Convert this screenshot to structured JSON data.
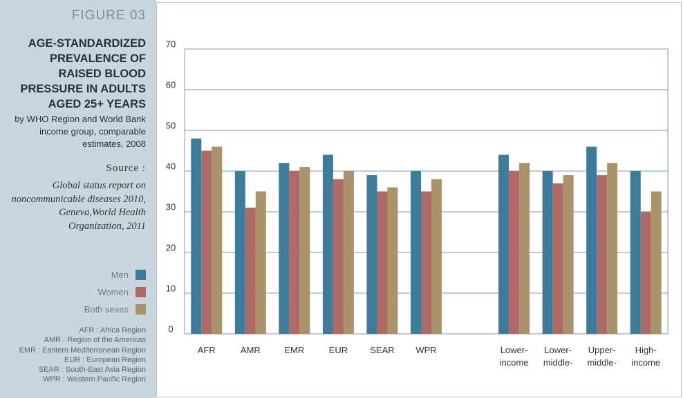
{
  "chart_data": {
    "type": "bar",
    "figure_label": "FIGURE 03",
    "title": "AGE-STANDARDIZED PREVALENCE OF RAISED BLOOD PRESSURE IN ADULTS AGED 25+ YEARS",
    "subtitle": "by WHO Region and World Bank income group, comparable estimates, 2008",
    "source_label": "Source :",
    "source": "Global status report on noncommunicable diseases 2010, Geneva,World Health Organization, 2011",
    "notes": [
      "AFR : Africa Region",
      "AMR : Region of the Americas",
      "EMR : Eastern Mediterranean Region",
      "EUR : European Region",
      "SEAR : South-East Asia Region",
      "WPR : Western Pacific Region"
    ],
    "categories": [
      "AFR",
      "AMR",
      "EMR",
      "EUR",
      "SEAR",
      "WPR",
      null,
      "Lower-income",
      "Lower-middle-",
      "Upper-middle-",
      "High-income"
    ],
    "series": [
      {
        "name": "Men",
        "color": "#3e7a9a",
        "values": [
          48,
          40,
          42,
          44,
          39,
          40,
          null,
          44,
          40,
          46,
          40
        ]
      },
      {
        "name": "Women",
        "color": "#b06a66",
        "values": [
          45,
          31,
          40,
          38,
          35,
          35,
          null,
          40,
          37,
          39,
          30
        ]
      },
      {
        "name": "Both sexes",
        "color": "#a8936a",
        "values": [
          46,
          35,
          41,
          40,
          36,
          38,
          null,
          42,
          39,
          42,
          35
        ]
      }
    ],
    "ylim": [
      0,
      70
    ],
    "yticks": [
      0,
      10,
      20,
      30,
      40,
      50,
      60,
      70
    ],
    "grid": true
  }
}
